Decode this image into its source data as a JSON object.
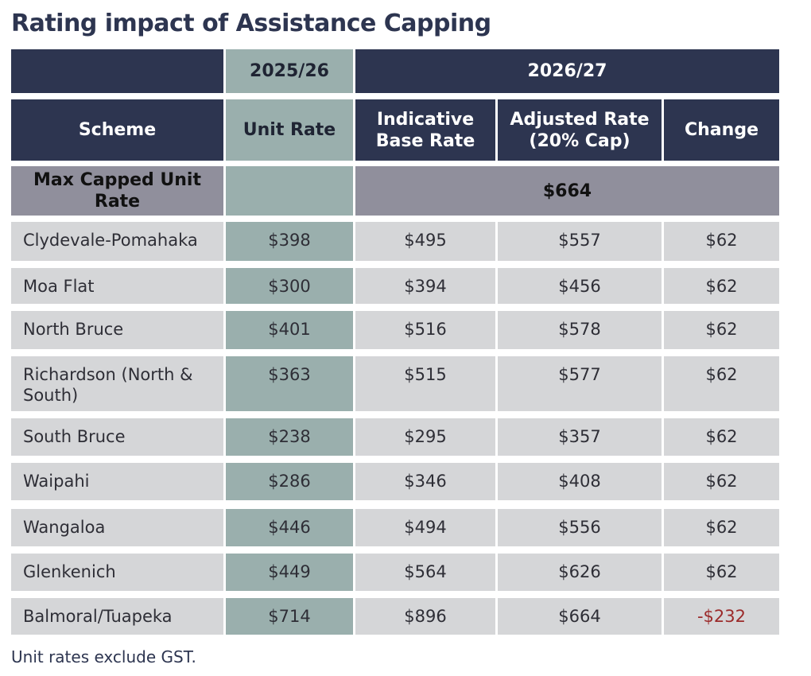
{
  "header": {
    "title": "Rating impact of Assistance Capping"
  },
  "table": {
    "header_top": [
      "2025/26",
      "2026/27"
    ],
    "columns": [
      "Scheme",
      "Unit Rate",
      "Indicative Base Rate",
      "Adjusted Rate (20% Cap)",
      "Change"
    ],
    "max_row": {
      "label": "Max Capped Unit Rate",
      "value": "$664"
    },
    "rows": [
      [
        "Clydevale-Pomahaka",
        "$398",
        "$495",
        "$557",
        "$62"
      ],
      [
        "Moa Flat",
        "$300",
        "$394",
        "$456",
        "$62"
      ],
      [
        "North Bruce",
        "$401",
        "$516",
        "$578",
        "$62"
      ],
      [
        "Richardson (North & South)",
        "$363",
        "$515",
        "$577",
        "$62"
      ],
      [
        "South Bruce",
        "$238",
        "$295",
        "$357",
        "$62"
      ],
      [
        "Waipahi",
        "$286",
        "$346",
        "$408",
        "$62"
      ],
      [
        "Wangaloa",
        "$446",
        "$494",
        "$556",
        "$62"
      ],
      [
        "Glenkenich",
        "$449",
        "$564",
        "$626",
        "$62"
      ],
      [
        "Balmoral/Tuapeka",
        "$714",
        "$896",
        "$664",
        "-$232"
      ]
    ]
  },
  "footnote": "Unit rates exclude GST."
}
